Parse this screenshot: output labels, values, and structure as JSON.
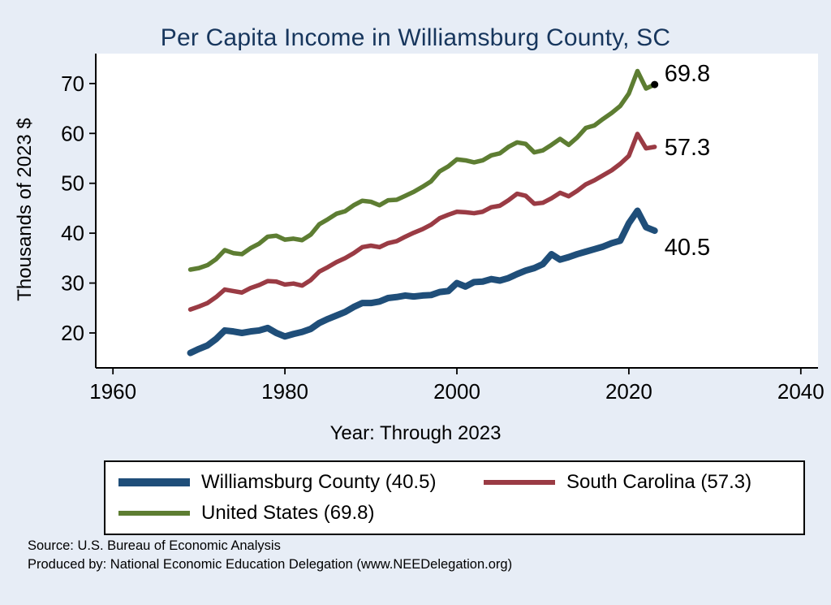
{
  "title": "Per Capita Income in Williamsburg County, SC",
  "x_axis_label": "Year: Through 2023",
  "y_axis_label": "Thousands of 2023 $",
  "source_line1": "Source: U.S. Bureau of Economic Analysis",
  "source_line2": "Produced by: National Economic Education Delegation (www.NEEDelegation.org)",
  "colors": {
    "background": "#e7edf6",
    "plot_background": "#ffffff",
    "title_text": "#17365d",
    "axis": "#000000"
  },
  "legend": {
    "items": [
      {
        "label": "Williamsburg County (40.5)"
      },
      {
        "label": "South Carolina (57.3)"
      },
      {
        "label": "United States (69.8)"
      }
    ]
  },
  "chart_data": {
    "type": "line",
    "title": "Per Capita Income in Williamsburg County, SC",
    "xlabel": "Year: Through 2023",
    "ylabel": "Thousands of 2023 $",
    "xlim": [
      1958,
      2042
    ],
    "ylim": [
      13,
      76
    ],
    "xticks": [
      1960,
      1980,
      2000,
      2020,
      2040
    ],
    "yticks": [
      20,
      30,
      40,
      50,
      60,
      70
    ],
    "grid": false,
    "legend_position": "bottom",
    "x": [
      1969,
      1970,
      1971,
      1972,
      1973,
      1974,
      1975,
      1976,
      1977,
      1978,
      1979,
      1980,
      1981,
      1982,
      1983,
      1984,
      1985,
      1986,
      1987,
      1988,
      1989,
      1990,
      1991,
      1992,
      1993,
      1994,
      1995,
      1996,
      1997,
      1998,
      1999,
      2000,
      2001,
      2002,
      2003,
      2004,
      2005,
      2006,
      2007,
      2008,
      2009,
      2010,
      2011,
      2012,
      2013,
      2014,
      2015,
      2016,
      2017,
      2018,
      2019,
      2020,
      2021,
      2022,
      2023
    ],
    "series": [
      {
        "name": "Williamsburg County",
        "end_label": "40.5",
        "color": "#1f4e79",
        "width": 8,
        "end_dot": false,
        "values": [
          16.0,
          16.8,
          17.5,
          18.8,
          20.5,
          20.3,
          20.0,
          20.3,
          20.5,
          21.0,
          20.0,
          19.3,
          19.8,
          20.2,
          20.8,
          22.0,
          22.8,
          23.5,
          24.2,
          25.2,
          26.0,
          26.0,
          26.3,
          27.0,
          27.2,
          27.5,
          27.3,
          27.5,
          27.6,
          28.2,
          28.4,
          30.0,
          29.3,
          30.2,
          30.3,
          30.8,
          30.5,
          31.0,
          31.8,
          32.5,
          33.0,
          33.8,
          35.8,
          34.7,
          35.2,
          35.8,
          36.3,
          36.8,
          37.3,
          38.0,
          38.5,
          42.0,
          44.5,
          41.2,
          40.5
        ]
      },
      {
        "name": "South Carolina",
        "end_label": "57.3",
        "color": "#9a3b44",
        "width": 5.5,
        "end_dot": false,
        "values": [
          24.7,
          25.3,
          26.0,
          27.2,
          28.7,
          28.4,
          28.1,
          29.0,
          29.6,
          30.4,
          30.3,
          29.7,
          29.9,
          29.5,
          30.6,
          32.3,
          33.2,
          34.2,
          35.0,
          36.0,
          37.2,
          37.5,
          37.2,
          38.0,
          38.4,
          39.3,
          40.1,
          40.8,
          41.7,
          43.0,
          43.7,
          44.3,
          44.2,
          44.0,
          44.3,
          45.2,
          45.5,
          46.6,
          47.9,
          47.5,
          45.9,
          46.1,
          47.0,
          48.1,
          47.4,
          48.5,
          49.8,
          50.6,
          51.6,
          52.6,
          53.9,
          55.5,
          59.9,
          57.0,
          57.3
        ]
      },
      {
        "name": "United States",
        "end_label": "69.8",
        "color": "#5d7d32",
        "width": 5.5,
        "end_dot": true,
        "values": [
          32.7,
          33.0,
          33.6,
          34.8,
          36.6,
          36.0,
          35.8,
          37.0,
          37.9,
          39.3,
          39.5,
          38.7,
          38.9,
          38.6,
          39.7,
          41.8,
          42.8,
          43.9,
          44.4,
          45.6,
          46.5,
          46.3,
          45.6,
          46.6,
          46.7,
          47.5,
          48.3,
          49.3,
          50.4,
          52.4,
          53.4,
          54.8,
          54.6,
          54.2,
          54.6,
          55.6,
          56.0,
          57.3,
          58.2,
          57.9,
          56.2,
          56.6,
          57.7,
          58.9,
          57.7,
          59.2,
          61.1,
          61.6,
          62.9,
          64.1,
          65.5,
          68.0,
          72.5,
          69.0,
          69.8
        ]
      }
    ]
  }
}
